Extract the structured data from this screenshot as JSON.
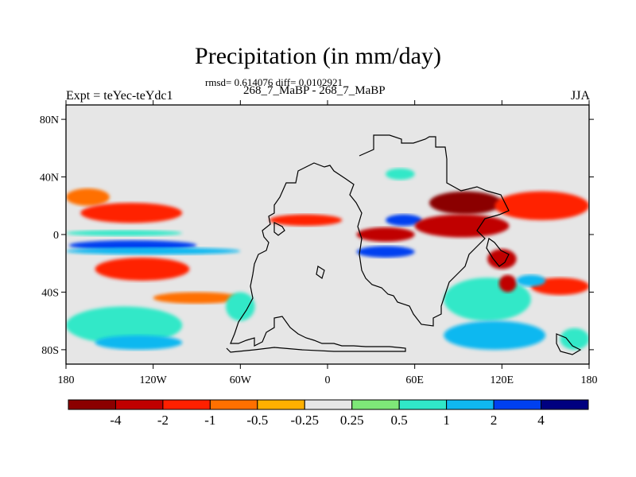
{
  "chart_data": {
    "type": "heatmap",
    "title": "Precipitation (in mm/day)",
    "stats": "rmsd= 0.614076 diff= 0.0102921",
    "subtitle": "268_7_MaBP - 268_7_MaBP",
    "left_label": "Expt = teYec-teYdc1",
    "right_label": "JJA",
    "x_range": [
      -180,
      180
    ],
    "y_range": [
      -90,
      90
    ],
    "x_ticks": [
      {
        "value": -180,
        "label": "180"
      },
      {
        "value": -120,
        "label": "120W"
      },
      {
        "value": -60,
        "label": "60W"
      },
      {
        "value": 0,
        "label": "0"
      },
      {
        "value": 60,
        "label": "60E"
      },
      {
        "value": 120,
        "label": "120E"
      },
      {
        "value": 180,
        "label": "180"
      }
    ],
    "y_ticks": [
      {
        "value": 80,
        "label": "80N"
      },
      {
        "value": 40,
        "label": "40N"
      },
      {
        "value": 0,
        "label": "0"
      },
      {
        "value": -40,
        "label": "40S"
      },
      {
        "value": -80,
        "label": "80S"
      }
    ],
    "colorbar": {
      "colors": [
        "#8b0000",
        "#c00000",
        "#ff2000",
        "#ff7000",
        "#ffb000",
        "#e6e6e6",
        "#7ee878",
        "#30e8c8",
        "#10b8f0",
        "#0040f0",
        "#000080"
      ],
      "labels": [
        {
          "boundary": 1,
          "label": "-4"
        },
        {
          "boundary": 2,
          "label": "-2"
        },
        {
          "boundary": 3,
          "label": "-1"
        },
        {
          "boundary": 4,
          "label": "-0.5"
        },
        {
          "boundary": 5,
          "label": "-0.25"
        },
        {
          "boundary": 6,
          "label": "0.25"
        },
        {
          "boundary": 7,
          "label": "0.5"
        },
        {
          "boundary": 8,
          "label": "1"
        },
        {
          "boundary": 9,
          "label": "2"
        },
        {
          "boundary": 10,
          "label": "4"
        }
      ]
    },
    "field_regions": [
      {
        "level": -0.5,
        "lon": [
          -180,
          -150
        ],
        "lat": [
          20,
          32
        ]
      },
      {
        "level": -1,
        "lon": [
          -170,
          -100
        ],
        "lat": [
          8,
          22
        ]
      },
      {
        "level": 0.5,
        "lon": [
          -180,
          -100
        ],
        "lat": [
          -1,
          3
        ]
      },
      {
        "level": 2,
        "lon": [
          -178,
          -90
        ],
        "lat": [
          -11,
          -4
        ]
      },
      {
        "level": 1,
        "lon": [
          -180,
          -60
        ],
        "lat": [
          -14,
          -9
        ]
      },
      {
        "level": -1,
        "lon": [
          -160,
          -95
        ],
        "lat": [
          -32,
          -16
        ]
      },
      {
        "level": -0.5,
        "lon": [
          -120,
          -60
        ],
        "lat": [
          -48,
          -40
        ]
      },
      {
        "level": 0.5,
        "lon": [
          -180,
          -100
        ],
        "lat": [
          -76,
          -50
        ]
      },
      {
        "level": 1,
        "lon": [
          -160,
          -100
        ],
        "lat": [
          -80,
          -70
        ]
      },
      {
        "level": 0.5,
        "lon": [
          -70,
          -50
        ],
        "lat": [
          -60,
          -40
        ]
      },
      {
        "level": -1,
        "lon": [
          -40,
          10
        ],
        "lat": [
          6,
          14
        ]
      },
      {
        "level": 0.5,
        "lon": [
          80,
          140
        ],
        "lat": [
          -60,
          -30
        ]
      },
      {
        "level": 1,
        "lon": [
          80,
          150
        ],
        "lat": [
          -80,
          -60
        ]
      },
      {
        "level": 0.5,
        "lon": [
          40,
          60
        ],
        "lat": [
          38,
          46
        ]
      },
      {
        "level": -2,
        "lon": [
          20,
          60
        ],
        "lat": [
          -5,
          5
        ]
      },
      {
        "level": 2,
        "lon": [
          40,
          65
        ],
        "lat": [
          6,
          14
        ]
      },
      {
        "level": 2,
        "lon": [
          20,
          60
        ],
        "lat": [
          -16,
          -8
        ]
      },
      {
        "level": -4,
        "lon": [
          70,
          120
        ],
        "lat": [
          14,
          30
        ]
      },
      {
        "level": -2,
        "lon": [
          60,
          125
        ],
        "lat": [
          -2,
          14
        ]
      },
      {
        "level": -2,
        "lon": [
          110,
          130
        ],
        "lat": [
          -24,
          -10
        ]
      },
      {
        "level": -1,
        "lon": [
          115,
          180
        ],
        "lat": [
          10,
          30
        ]
      },
      {
        "level": -2,
        "lon": [
          118,
          130
        ],
        "lat": [
          -40,
          -28
        ]
      },
      {
        "level": -1,
        "lon": [
          140,
          180
        ],
        "lat": [
          -42,
          -30
        ]
      },
      {
        "level": 1,
        "lon": [
          130,
          150
        ],
        "lat": [
          -36,
          -28
        ]
      },
      {
        "level": 0.5,
        "lon": [
          160,
          180
        ],
        "lat": [
          -80,
          -65
        ]
      }
    ]
  }
}
